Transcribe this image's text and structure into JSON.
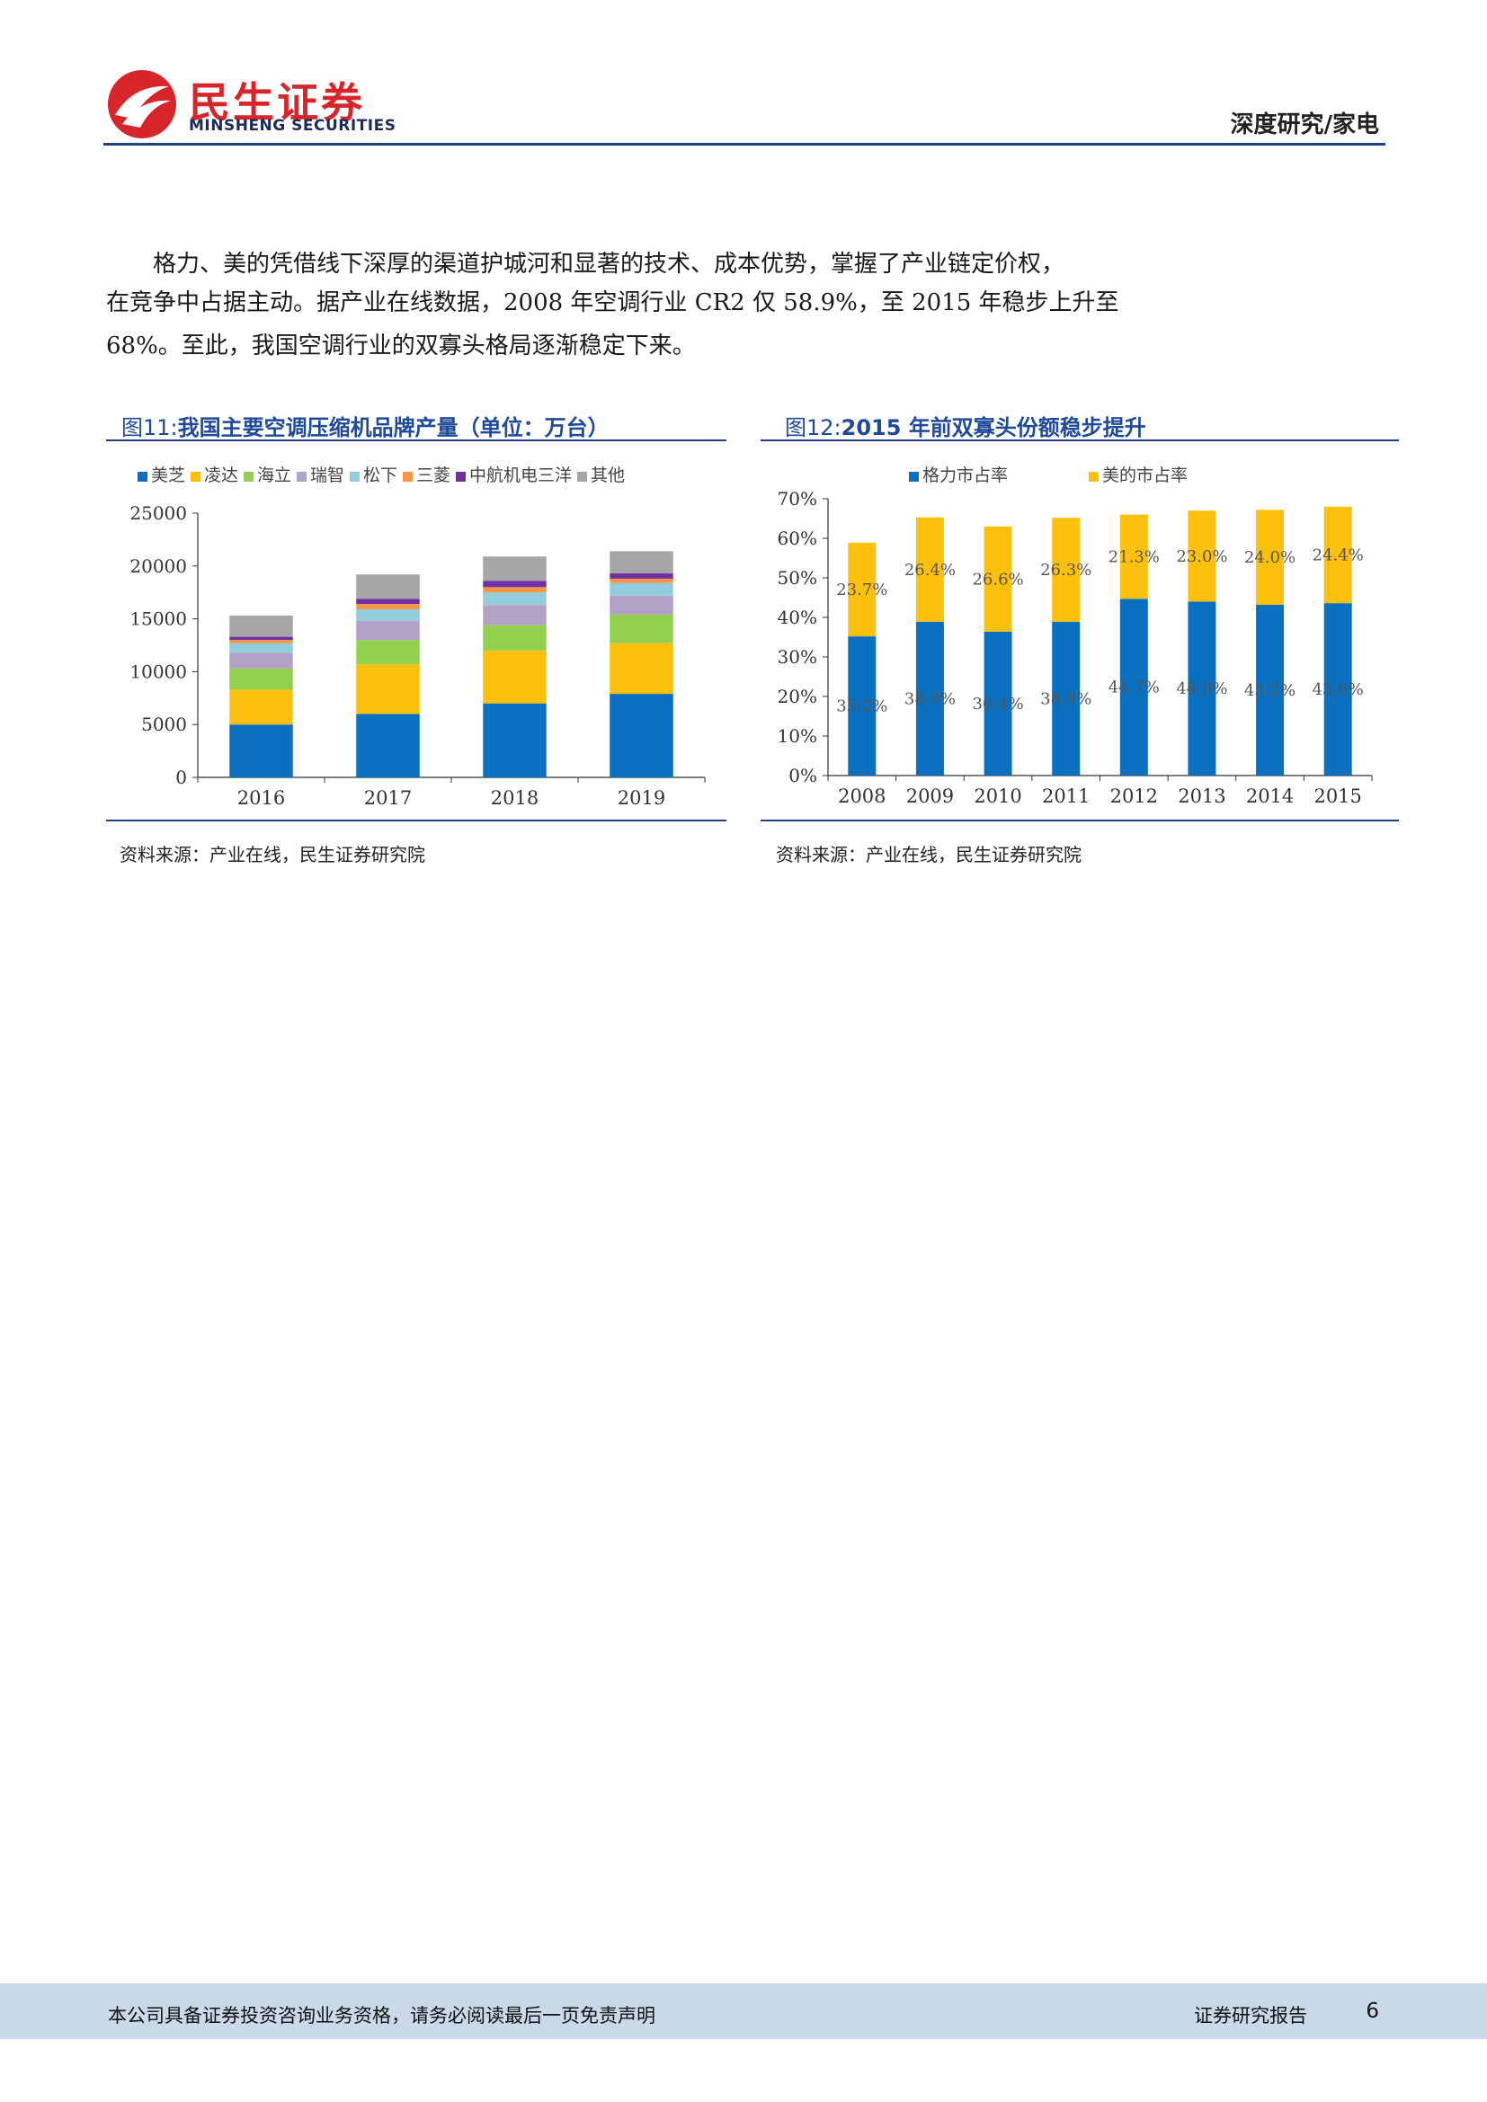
{
  "header": {
    "logo_cn": "民生证券",
    "logo_en": "MINSHENG SECURITIES",
    "tag": "深度研究/家电",
    "brand_color": "#d7252a",
    "rule_color": "#1e3f8a"
  },
  "body_text": {
    "p1": "格力、美的凭借线下深厚的渠道护城河和显著的技术、成本优势，掌握了产业链定价权，",
    "p2": "在竞争中占据主动。据产业在线数据，2008 年空调行业 CR2 仅 58.9%，至 2015 年稳步上升至",
    "p3": "68%。至此，我国空调行业的双寡头格局逐渐稳定下来。"
  },
  "figure11": {
    "prefix": "图11:",
    "title": "我国主要空调压缩机品牌产量（单位：万台）",
    "source": "资料来源：产业在线，民生证券研究院"
  },
  "figure12": {
    "prefix": "图12:",
    "title": "2015 年前双寡头份额稳步提升",
    "source": "资料来源：产业在线，民生证券研究院"
  },
  "chart_data": [
    {
      "type": "bar",
      "stacked": true,
      "categories": [
        "2016",
        "2017",
        "2018",
        "2019"
      ],
      "ylim": [
        0,
        25000
      ],
      "yticks": [
        "0",
        "5000",
        "10000",
        "15000",
        "20000",
        "25000"
      ],
      "legend_position": "top",
      "series": [
        {
          "name": "美芝",
          "color": "#0a70c0",
          "values": [
            5000,
            6000,
            7000,
            7900
          ]
        },
        {
          "name": "凌达",
          "color": "#fdc00f",
          "values": [
            3300,
            4700,
            5000,
            4800
          ]
        },
        {
          "name": "海立",
          "color": "#92d050",
          "values": [
            2000,
            2300,
            2400,
            2700
          ]
        },
        {
          "name": "瑞智",
          "color": "#b3a2c7",
          "values": [
            1500,
            1800,
            1900,
            1800
          ]
        },
        {
          "name": "松下",
          "color": "#93cddd",
          "values": [
            900,
            1100,
            1200,
            1200
          ]
        },
        {
          "name": "三菱",
          "color": "#f79646",
          "values": [
            300,
            500,
            500,
            400
          ]
        },
        {
          "name": "中航机电三洋",
          "color": "#7030a0",
          "values": [
            300,
            500,
            600,
            500
          ]
        },
        {
          "name": "其他",
          "color": "#a6a6a6",
          "values": [
            2000,
            2300,
            2300,
            2100
          ]
        }
      ]
    },
    {
      "type": "bar",
      "stacked": true,
      "categories": [
        "2008",
        "2009",
        "2010",
        "2011",
        "2012",
        "2013",
        "2014",
        "2015"
      ],
      "ylim": [
        0,
        70
      ],
      "yticks": [
        "0%",
        "10%",
        "20%",
        "30%",
        "40%",
        "50%",
        "60%",
        "70%"
      ],
      "legend_position": "top",
      "series": [
        {
          "name": "格力市占率",
          "color": "#0a70c0",
          "values": [
            35.2,
            38.9,
            36.4,
            38.9,
            44.7,
            44.0,
            43.2,
            43.6
          ],
          "labels": [
            "35.2%",
            "38.9%",
            "36.4%",
            "38.9%",
            "44.7%",
            "44.0%",
            "43.2%",
            "43.6%"
          ]
        },
        {
          "name": "美的市占率",
          "color": "#fdc00f",
          "values": [
            23.7,
            26.4,
            26.6,
            26.3,
            21.3,
            23.0,
            24.0,
            24.4
          ],
          "labels": [
            "23.7%",
            "26.4%",
            "26.6%",
            "26.3%",
            "21.3%",
            "23.0%",
            "24.0%",
            "24.4%"
          ]
        }
      ]
    }
  ],
  "footer": {
    "disclaimer": "本公司具备证券投资咨询业务资格，请务必阅读最后一页免责声明",
    "label": "证券研究报告",
    "page": "6"
  }
}
